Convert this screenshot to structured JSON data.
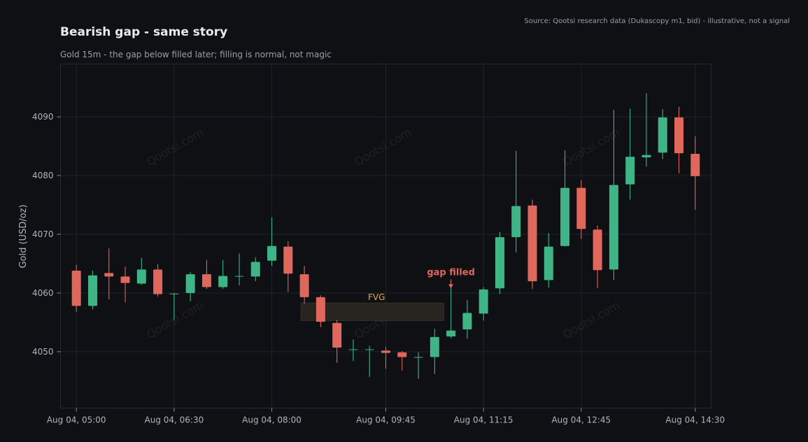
{
  "chart_data": {
    "type": "candlestick",
    "title": "Bearish gap - same story",
    "subtitle": "Gold 15m - the gap below filled later; filling is normal, not magic",
    "source": "Source: Qootsi research data (Dukascopy m1, bid) - illustrative, not a signal",
    "ylabel": "Gold (USD/oz)",
    "xlabel": "",
    "ylim": [
      4040.4,
      4099.0
    ],
    "yticks": [
      4050,
      4060,
      4070,
      4080,
      4090
    ],
    "xticks": [
      {
        "t": "2025-08-04T05:00",
        "label": "Aug 04, 05:00"
      },
      {
        "t": "2025-08-04T06:30",
        "label": "Aug 04, 06:30"
      },
      {
        "t": "2025-08-04T08:00",
        "label": "Aug 04, 08:00"
      },
      {
        "t": "2025-08-04T09:45",
        "label": "Aug 04, 09:45"
      },
      {
        "t": "2025-08-04T11:15",
        "label": "Aug 04, 11:15"
      },
      {
        "t": "2025-08-04T12:45",
        "label": "Aug 04, 12:45"
      },
      {
        "t": "2025-08-04T14:30",
        "label": "Aug 04, 14:30"
      }
    ],
    "grid": true,
    "watermark": "Qootsi.com",
    "colors": {
      "up": "#3fb487",
      "down": "#e0675c",
      "fvg": "#2a2722",
      "fvg_label": "#e1ab55",
      "annotation": "#e0675c"
    },
    "candles": [
      {
        "t": "2025-08-04T05:00",
        "o": 4063.8,
        "h": 4064.8,
        "l": 4056.8,
        "c": 4057.8
      },
      {
        "t": "2025-08-04T05:15",
        "o": 4057.8,
        "h": 4063.8,
        "l": 4057.2,
        "c": 4063.0
      },
      {
        "t": "2025-08-04T05:30",
        "o": 4063.4,
        "h": 4067.6,
        "l": 4058.9,
        "c": 4062.8
      },
      {
        "t": "2025-08-04T05:45",
        "o": 4062.8,
        "h": 4064.5,
        "l": 4058.4,
        "c": 4061.7
      },
      {
        "t": "2025-08-04T06:00",
        "o": 4061.6,
        "h": 4066.0,
        "l": 4061.4,
        "c": 4064.0
      },
      {
        "t": "2025-08-04T06:15",
        "o": 4064.0,
        "h": 4064.9,
        "l": 4059.4,
        "c": 4059.8
      },
      {
        "t": "2025-08-04T06:30",
        "o": 4059.8,
        "h": 4060.0,
        "l": 4055.4,
        "c": 4059.9
      },
      {
        "t": "2025-08-04T06:45",
        "o": 4060.0,
        "h": 4063.6,
        "l": 4058.6,
        "c": 4063.2
      },
      {
        "t": "2025-08-04T07:00",
        "o": 4063.2,
        "h": 4065.6,
        "l": 4060.7,
        "c": 4061.0
      },
      {
        "t": "2025-08-04T07:15",
        "o": 4061.0,
        "h": 4065.6,
        "l": 4060.7,
        "c": 4062.9
      },
      {
        "t": "2025-08-04T07:30",
        "o": 4062.9,
        "h": 4066.7,
        "l": 4061.3,
        "c": 4062.9
      },
      {
        "t": "2025-08-04T07:45",
        "o": 4062.8,
        "h": 4066.1,
        "l": 4062.0,
        "c": 4065.3
      },
      {
        "t": "2025-08-04T08:00",
        "o": 4065.5,
        "h": 4072.9,
        "l": 4064.6,
        "c": 4068.0
      },
      {
        "t": "2025-08-04T08:15",
        "o": 4067.9,
        "h": 4068.8,
        "l": 4060.2,
        "c": 4063.3
      },
      {
        "t": "2025-08-04T08:30",
        "o": 4063.2,
        "h": 4064.6,
        "l": 4058.2,
        "c": 4059.3
      },
      {
        "t": "2025-08-04T08:45",
        "o": 4059.3,
        "h": 4059.6,
        "l": 4054.2,
        "c": 4055.1
      },
      {
        "t": "2025-08-04T09:00",
        "o": 4054.9,
        "h": 4055.4,
        "l": 4048.1,
        "c": 4050.7
      },
      {
        "t": "2025-08-04T09:15",
        "o": 4050.4,
        "h": 4052.1,
        "l": 4048.4,
        "c": 4050.4
      },
      {
        "t": "2025-08-04T09:30",
        "o": 4050.3,
        "h": 4051.0,
        "l": 4045.7,
        "c": 4050.4
      },
      {
        "t": "2025-08-04T09:45",
        "o": 4050.2,
        "h": 4050.8,
        "l": 4047.1,
        "c": 4049.8
      },
      {
        "t": "2025-08-04T10:00",
        "o": 4049.9,
        "h": 4050.1,
        "l": 4046.8,
        "c": 4049.1
      },
      {
        "t": "2025-08-04T10:15",
        "o": 4049.1,
        "h": 4049.9,
        "l": 4045.4,
        "c": 4049.1
      },
      {
        "t": "2025-08-04T10:30",
        "o": 4049.1,
        "h": 4053.9,
        "l": 4046.2,
        "c": 4052.5
      },
      {
        "t": "2025-08-04T10:45",
        "o": 4052.6,
        "h": 4061.3,
        "l": 4052.3,
        "c": 4053.6
      },
      {
        "t": "2025-08-04T11:00",
        "o": 4053.8,
        "h": 4058.8,
        "l": 4052.2,
        "c": 4056.6
      },
      {
        "t": "2025-08-04T11:15",
        "o": 4056.5,
        "h": 4061.0,
        "l": 4055.3,
        "c": 4060.6
      },
      {
        "t": "2025-08-04T11:30",
        "o": 4060.8,
        "h": 4070.4,
        "l": 4059.8,
        "c": 4069.5
      },
      {
        "t": "2025-08-04T11:45",
        "o": 4069.5,
        "h": 4084.2,
        "l": 4066.9,
        "c": 4074.8
      },
      {
        "t": "2025-08-04T12:00",
        "o": 4074.9,
        "h": 4075.9,
        "l": 4060.7,
        "c": 4062.0
      },
      {
        "t": "2025-08-04T12:15",
        "o": 4062.2,
        "h": 4070.2,
        "l": 4060.9,
        "c": 4067.9
      },
      {
        "t": "2025-08-04T12:30",
        "o": 4068.0,
        "h": 4084.3,
        "l": 4067.9,
        "c": 4077.9
      },
      {
        "t": "2025-08-04T12:45",
        "o": 4077.9,
        "h": 4079.2,
        "l": 4069.2,
        "c": 4070.9
      },
      {
        "t": "2025-08-04T13:00",
        "o": 4070.8,
        "h": 4071.5,
        "l": 4060.8,
        "c": 4063.9
      },
      {
        "t": "2025-08-04T13:15",
        "o": 4064.0,
        "h": 4091.2,
        "l": 4062.2,
        "c": 4078.4
      },
      {
        "t": "2025-08-04T13:30",
        "o": 4078.5,
        "h": 4091.4,
        "l": 4075.9,
        "c": 4083.2
      },
      {
        "t": "2025-08-04T13:45",
        "o": 4083.1,
        "h": 4094.0,
        "l": 4081.5,
        "c": 4083.5
      },
      {
        "t": "2025-08-04T14:00",
        "o": 4083.9,
        "h": 4091.3,
        "l": 4082.8,
        "c": 4089.9
      },
      {
        "t": "2025-08-04T14:15",
        "o": 4089.9,
        "h": 4091.7,
        "l": 4080.4,
        "c": 4083.8
      },
      {
        "t": "2025-08-04T14:30",
        "o": 4083.7,
        "h": 4086.7,
        "l": 4074.2,
        "c": 4079.9
      }
    ],
    "annotations": {
      "fvg": {
        "label": "FVG",
        "low": 4055.3,
        "high": 4058.3,
        "t_start": "2025-08-04T08:30",
        "t_end": "2025-08-04T10:30"
      },
      "gap_filled": {
        "label": "gap filled",
        "t": "2025-08-04T10:45",
        "y": 4060.9
      }
    }
  }
}
